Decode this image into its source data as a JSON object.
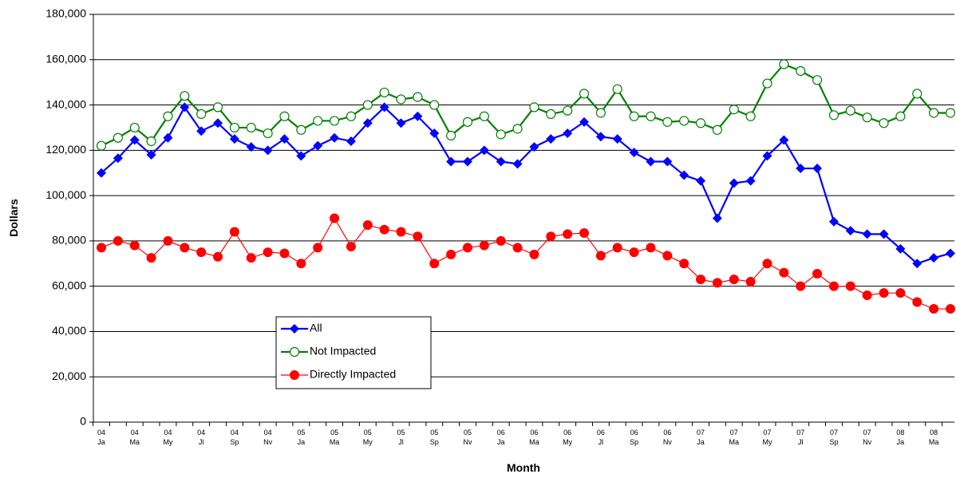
{
  "chart_data": {
    "type": "line",
    "x_label": "Month",
    "y_label": "Dollars",
    "categories": [
      "04 Ja",
      null,
      "04 Ma",
      null,
      "04 My",
      null,
      "04 Jl",
      null,
      "04 Sp",
      null,
      "04 Nv",
      null,
      "05 Ja",
      null,
      "05 Ma",
      null,
      "05 My",
      null,
      "05 Jl",
      null,
      "05 Sp",
      null,
      "05 Nv",
      null,
      "06 Ja",
      null,
      "06 Ma",
      null,
      "06 My",
      null,
      "06 Jl",
      null,
      "06 Sp",
      null,
      "06 Nv",
      null,
      "07 Ja",
      null,
      "07 Ma",
      null,
      "07 My",
      null,
      "07 Jl",
      null,
      "07 Sp",
      null,
      "07 Nv",
      null,
      "08 Ja",
      null,
      "08 Ma",
      null
    ],
    "series": [
      {
        "name": "All",
        "color": "#0000ff",
        "marker": "diamond",
        "values": [
          110000,
          116500,
          124500,
          118000,
          125500,
          139000,
          128500,
          132000,
          125000,
          121500,
          120000,
          125000,
          117500,
          122000,
          125500,
          124000,
          132000,
          139000,
          132000,
          135000,
          127500,
          115000,
          115000,
          120000,
          115000,
          114000,
          121500,
          125000,
          127500,
          132500,
          126000,
          125000,
          119000,
          115000,
          115000,
          109000,
          106500,
          90000,
          105500,
          106500,
          117500,
          124500,
          112000,
          112000,
          88500,
          84500,
          83000,
          83000,
          76500,
          70000,
          72500,
          74500
        ]
      },
      {
        "name": "Not Impacted",
        "color": "#008000",
        "marker": "open-circle",
        "values": [
          122000,
          125500,
          130000,
          124000,
          135000,
          144000,
          136000,
          139000,
          130000,
          130000,
          127500,
          135000,
          129000,
          133000,
          133000,
          135000,
          140000,
          145500,
          142500,
          143500,
          140000,
          126500,
          132500,
          135000,
          127000,
          129500,
          139000,
          136000,
          137500,
          145000,
          136500,
          147000,
          135000,
          135000,
          132500,
          133000,
          132000,
          129000,
          138000,
          135000,
          149500,
          158000,
          155000,
          151000,
          135500,
          137500,
          134500,
          132000,
          135000,
          145000,
          136500,
          136500
        ]
      },
      {
        "name": "Directly Impacted",
        "color": "#ff0000",
        "marker": "circle",
        "values": [
          77000,
          80000,
          78000,
          72500,
          80000,
          77000,
          75000,
          73000,
          84000,
          72500,
          75000,
          74500,
          70000,
          77000,
          90000,
          77500,
          87000,
          85000,
          84000,
          82000,
          70000,
          74000,
          77000,
          78000,
          80000,
          77000,
          74000,
          82000,
          83000,
          83500,
          73500,
          77000,
          75000,
          77000,
          73500,
          70000,
          63000,
          61500,
          63000,
          62000,
          70000,
          66000,
          60000,
          65500,
          60000,
          60000,
          56000,
          57000,
          57000,
          53000,
          50000,
          50000
        ]
      }
    ],
    "ylim": [
      0,
      180000
    ],
    "yticks": [
      0,
      {
        "value": 20000,
        "label": "20,000"
      },
      {
        "value": 40000,
        "label": "40,000"
      },
      {
        "value": 60000,
        "label": "60,000"
      },
      {
        "value": 80000,
        "label": "80,000"
      },
      {
        "value": 100000,
        "label": "100,000"
      },
      {
        "value": 120000,
        "label": "120,000"
      },
      {
        "value": 140000,
        "label": "140,000"
      },
      {
        "value": 160000,
        "label": "160,000"
      },
      {
        "value": 180000,
        "label": "180,000"
      }
    ],
    "grid": true,
    "legend": "lower-left"
  }
}
